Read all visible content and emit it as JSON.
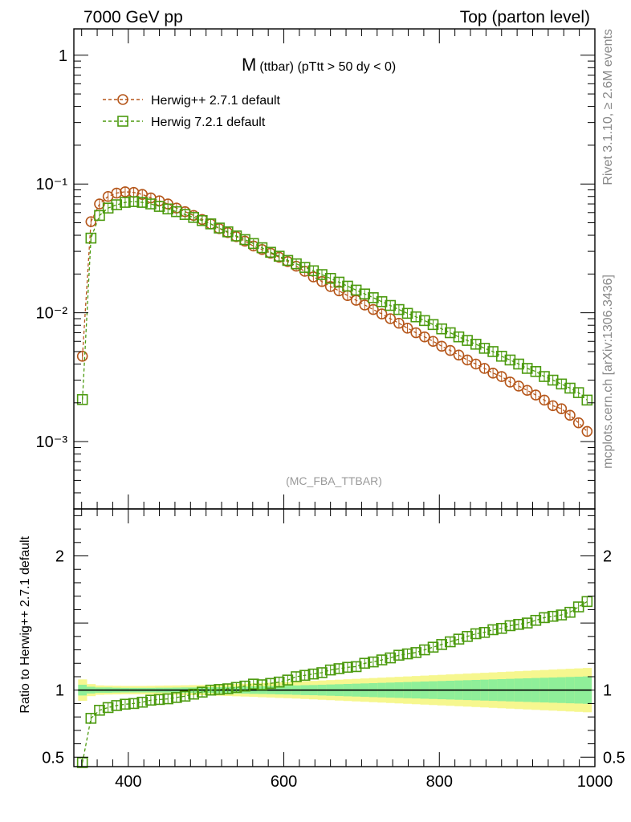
{
  "header": {
    "left": "7000 GeV pp",
    "right": "Top (parton level)"
  },
  "side_labels": {
    "upper": "Rivet 3.1.10, ≥ 2.6M events",
    "lower": "mcplots.cern.ch [arXiv:1306.3436]"
  },
  "chart_data": [
    {
      "type": "scatter",
      "title": "M (ttbar) (pTtt > 50 dy < 0)",
      "title_main": "M",
      "title_sub": "(ttbar) (pTtt > 50 dy < 0)",
      "watermark": "(MC_FBA_TTBAR)",
      "xlim": [
        330,
        1000
      ],
      "yscale": "log",
      "ylim": [
        0.0003,
        1.6
      ],
      "y_ticks": [
        "1",
        "10⁻¹",
        "10⁻²",
        "10⁻³"
      ],
      "y_tick_values": [
        1,
        0.1,
        0.01,
        0.001
      ],
      "legend_position": "top-left",
      "x": [
        341,
        352,
        363,
        374,
        385,
        396,
        407,
        418,
        429,
        440,
        451,
        462,
        473,
        484,
        495,
        506,
        517,
        528,
        539,
        550,
        561,
        572,
        583,
        594,
        605,
        616,
        627,
        638,
        649,
        660,
        671,
        682,
        693,
        704,
        715,
        726,
        737,
        748,
        759,
        770,
        781,
        792,
        803,
        814,
        825,
        836,
        847,
        858,
        869,
        880,
        891,
        902,
        913,
        924,
        935,
        946,
        957,
        968,
        979,
        990
      ],
      "series": [
        {
          "name": "Herwig++ 2.7.1 default",
          "marker": "circle",
          "color": "#b5561a",
          "values": [
            0.0046,
            0.051,
            0.07,
            0.08,
            0.085,
            0.087,
            0.086,
            0.083,
            0.078,
            0.074,
            0.07,
            0.065,
            0.061,
            0.057,
            0.053,
            0.049,
            0.045,
            0.042,
            0.039,
            0.036,
            0.033,
            0.031,
            0.029,
            0.027,
            0.025,
            0.023,
            0.021,
            0.019,
            0.0175,
            0.016,
            0.0148,
            0.0136,
            0.0125,
            0.0115,
            0.0106,
            0.0098,
            0.009,
            0.0083,
            0.0076,
            0.007,
            0.0065,
            0.006,
            0.0055,
            0.0051,
            0.0047,
            0.0043,
            0.004,
            0.0037,
            0.0034,
            0.0032,
            0.0029,
            0.0027,
            0.0025,
            0.0023,
            0.0021,
            0.0019,
            0.0018,
            0.0016,
            0.0014,
            0.0012
          ]
        },
        {
          "name": "Herwig 7.2.1 default",
          "marker": "square",
          "color": "#4b9a0e",
          "values": [
            0.00212,
            0.038,
            0.057,
            0.065,
            0.069,
            0.072,
            0.073,
            0.072,
            0.07,
            0.067,
            0.064,
            0.061,
            0.058,
            0.055,
            0.052,
            0.049,
            0.0455,
            0.0425,
            0.0395,
            0.037,
            0.0345,
            0.032,
            0.0295,
            0.0275,
            0.0255,
            0.024,
            0.0225,
            0.0212,
            0.0198,
            0.0185,
            0.0173,
            0.0161,
            0.015,
            0.014,
            0.0131,
            0.0122,
            0.0114,
            0.0106,
            0.0099,
            0.0093,
            0.0087,
            0.0081,
            0.0075,
            0.007,
            0.0065,
            0.0061,
            0.0057,
            0.0053,
            0.005,
            0.0046,
            0.0043,
            0.004,
            0.0037,
            0.0035,
            0.0032,
            0.003,
            0.0028,
            0.0026,
            0.0024,
            0.0021
          ]
        }
      ]
    },
    {
      "type": "scatter",
      "ylabel": "Ratio to Herwig++ 2.7.1 default",
      "xlim": [
        330,
        1000
      ],
      "ylim": [
        0.43,
        2.35
      ],
      "x_ticks": [
        400,
        600,
        800,
        1000
      ],
      "y_ticks": [
        0.5,
        1,
        2
      ],
      "x": [
        341,
        352,
        363,
        374,
        385,
        396,
        407,
        418,
        429,
        440,
        451,
        462,
        473,
        484,
        495,
        506,
        517,
        528,
        539,
        550,
        561,
        572,
        583,
        594,
        605,
        616,
        627,
        638,
        649,
        660,
        671,
        682,
        693,
        704,
        715,
        726,
        737,
        748,
        759,
        770,
        781,
        792,
        803,
        814,
        825,
        836,
        847,
        858,
        869,
        880,
        891,
        902,
        913,
        924,
        935,
        946,
        957,
        968,
        979,
        990
      ],
      "reference_line": 1,
      "band_inner": [
        0.96,
        0.975,
        0.98,
        0.98,
        0.982,
        0.983,
        0.983,
        0.983,
        0.983,
        0.982,
        0.982,
        0.981,
        0.98,
        0.98,
        0.979,
        0.978,
        0.977,
        0.976,
        0.975,
        0.974,
        0.972,
        0.971,
        0.97,
        0.968,
        0.967,
        0.965,
        0.963,
        0.962,
        0.96,
        0.958,
        0.956,
        0.954,
        0.952,
        0.95,
        0.948,
        0.946,
        0.944,
        0.942,
        0.94,
        0.938,
        0.936,
        0.934,
        0.932,
        0.93,
        0.928,
        0.926,
        0.924,
        0.922,
        0.92,
        0.918,
        0.916,
        0.914,
        0.912,
        0.91,
        0.908,
        0.906,
        0.904,
        0.902,
        0.9,
        0.898
      ],
      "band_outer": [
        0.92,
        0.955,
        0.965,
        0.967,
        0.968,
        0.969,
        0.969,
        0.969,
        0.968,
        0.967,
        0.966,
        0.965,
        0.964,
        0.963,
        0.962,
        0.96,
        0.958,
        0.956,
        0.954,
        0.952,
        0.95,
        0.947,
        0.945,
        0.942,
        0.94,
        0.937,
        0.934,
        0.931,
        0.928,
        0.925,
        0.922,
        0.919,
        0.916,
        0.913,
        0.91,
        0.907,
        0.904,
        0.901,
        0.898,
        0.895,
        0.892,
        0.889,
        0.886,
        0.883,
        0.88,
        0.877,
        0.874,
        0.871,
        0.868,
        0.865,
        0.862,
        0.859,
        0.856,
        0.853,
        0.85,
        0.847,
        0.844,
        0.841,
        0.838,
        0.835
      ],
      "series": [
        {
          "name": "Herwig 7.2.1 default",
          "marker": "square",
          "color": "#4b9a0e",
          "values": [
            0.46,
            0.79,
            0.85,
            0.87,
            0.885,
            0.895,
            0.9,
            0.91,
            0.925,
            0.93,
            0.935,
            0.945,
            0.955,
            0.97,
            0.985,
            1.0,
            1.005,
            1.01,
            1.02,
            1.03,
            1.045,
            1.04,
            1.05,
            1.06,
            1.075,
            1.1,
            1.11,
            1.12,
            1.13,
            1.15,
            1.16,
            1.17,
            1.175,
            1.2,
            1.21,
            1.225,
            1.24,
            1.26,
            1.27,
            1.28,
            1.3,
            1.32,
            1.34,
            1.36,
            1.38,
            1.4,
            1.42,
            1.43,
            1.45,
            1.46,
            1.48,
            1.49,
            1.5,
            1.52,
            1.54,
            1.55,
            1.56,
            1.58,
            1.62,
            1.66
          ]
        }
      ]
    }
  ]
}
